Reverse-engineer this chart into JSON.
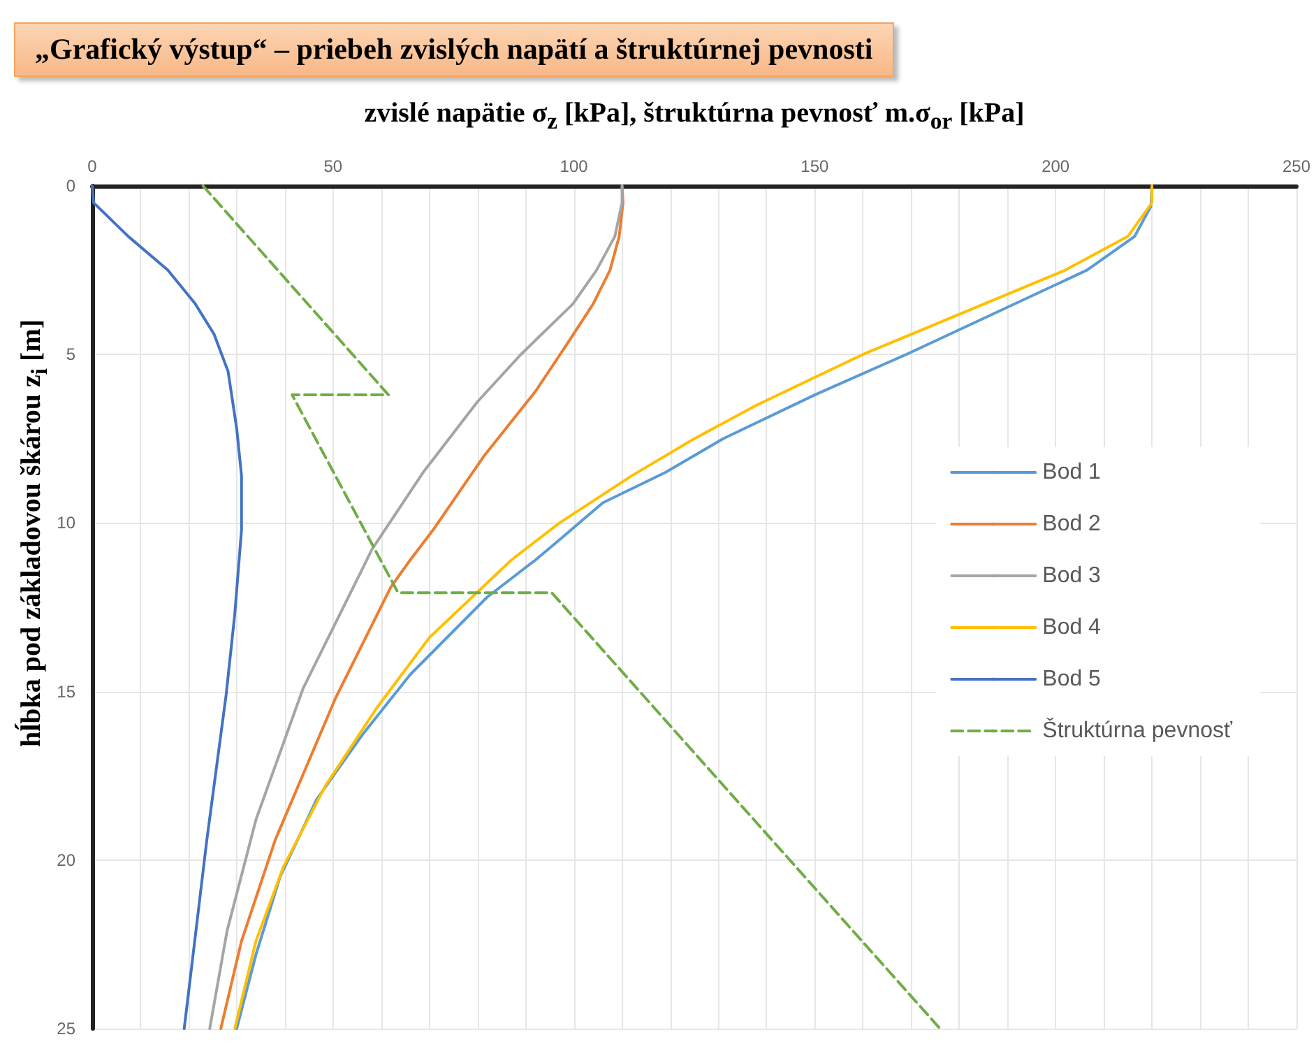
{
  "chart_data": {
    "type": "line",
    "title": "„Grafický výstup“ – priebeh zvislých napätí a štruktúrnej pevnosti",
    "xlabel": "zvislé napätie σ$_{z}$ [kPa], štruktúrna pevnosť m.σ$_{or}$ [kPa]",
    "ylabel": "hĺbka pod základovou škárou   z$_{i}$ [m]",
    "xlim": [
      0,
      250
    ],
    "xticks": [
      0,
      {
        "value": 10,
        "label": null
      },
      {
        "value": 20,
        "label": null
      },
      {
        "value": 30,
        "label": null
      },
      {
        "value": 40,
        "label": null
      },
      50,
      {
        "value": 60,
        "label": null
      },
      {
        "value": 70,
        "label": null
      },
      {
        "value": 80,
        "label": null
      },
      {
        "value": 90,
        "label": null
      },
      100,
      {
        "value": 110,
        "label": null
      },
      {
        "value": 120,
        "label": null
      },
      {
        "value": 130,
        "label": null
      },
      {
        "value": 140,
        "label": null
      },
      150,
      {
        "value": 160,
        "label": null
      },
      {
        "value": 170,
        "label": null
      },
      {
        "value": 180,
        "label": null
      },
      {
        "value": 190,
        "label": null
      },
      200,
      {
        "value": 210,
        "label": null
      },
      {
        "value": 220,
        "label": null
      },
      {
        "value": 230,
        "label": null
      },
      {
        "value": 240,
        "label": null
      },
      250
    ],
    "ylim": [
      25,
      0
    ],
    "yticks": [
      0,
      5,
      10,
      15,
      20,
      25
    ],
    "grid": true,
    "legend": "right",
    "marker": "none",
    "series": [
      {
        "name": "Bod 1",
        "color": "#5b9bd5",
        "x": [
          220,
          219.8,
          216.4,
          206.5,
          169,
          150,
          131,
          119,
          106,
          97,
          92,
          82,
          66,
          56,
          46.6,
          39,
          34,
          30
        ],
        "values": [
          0,
          0.6,
          1.5,
          2.5,
          5,
          6.2,
          7.5,
          8.5,
          9.4,
          10.5,
          11.1,
          12.2,
          14.5,
          16.3,
          18.2,
          20.5,
          22.8,
          25
        ]
      },
      {
        "name": "Bod 2",
        "color": "#ed7d31",
        "x": [
          110,
          110.2,
          109.4,
          107.5,
          104,
          99,
          92,
          81.4,
          70.8,
          66,
          62,
          50.5,
          38,
          31,
          26.7
        ],
        "values": [
          0,
          0.5,
          1.5,
          2.5,
          3.5,
          4.6,
          6.1,
          8,
          10.2,
          11.1,
          11.9,
          15.2,
          19.4,
          22.4,
          25
        ]
      },
      {
        "name": "Bod 3",
        "color": "#a5a5a5",
        "x": [
          110,
          110,
          108.5,
          104.7,
          99.8,
          89,
          80,
          68.7,
          58,
          57,
          43.8,
          34,
          28,
          24.4
        ],
        "values": [
          0,
          0.5,
          1.5,
          2.5,
          3.5,
          5,
          6.4,
          8.5,
          10.8,
          11.1,
          14.9,
          18.8,
          22.1,
          25
        ]
      },
      {
        "name": "Bod 4",
        "color": "#ffc000",
        "x": [
          220,
          220,
          215,
          202,
          160,
          138,
          125,
          112,
          97,
          87,
          70,
          59,
          48.4,
          39.7,
          34,
          29.6
        ],
        "values": [
          0,
          0.5,
          1.5,
          2.5,
          5,
          6.5,
          7.5,
          8.6,
          10,
          11.1,
          13.4,
          15.5,
          17.8,
          20.2,
          22.4,
          25
        ]
      },
      {
        "name": "Bod 5",
        "color": "#4472c4",
        "x": [
          0,
          0.3,
          7.5,
          15.7,
          21.4,
          25.3,
          28.2,
          30,
          31,
          31,
          29.6,
          27.8,
          23.8,
          19.1
        ],
        "values": [
          0,
          0.5,
          1.5,
          2.5,
          3.5,
          4.4,
          5.5,
          7.2,
          8.6,
          10.2,
          12.7,
          15.1,
          19.4,
          25
        ]
      },
      {
        "name": "Štruktúrna pevnosť",
        "color": "#70ad47",
        "line_style": "dashed",
        "x": [
          23,
          61.5,
          41.5,
          63.5,
          95.4,
          176
        ],
        "values": [
          0,
          6.2,
          6.2,
          12.07,
          12.07,
          25
        ]
      }
    ]
  }
}
